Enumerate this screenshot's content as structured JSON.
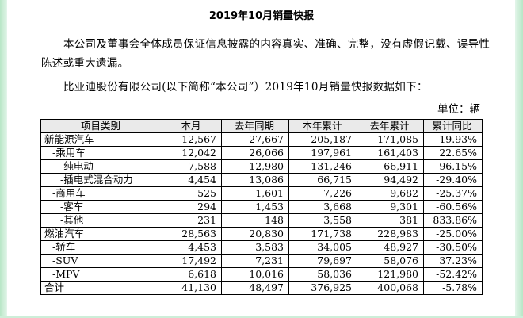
{
  "title": "2019年10月销量快报",
  "paragraph1": "本公司及董事会全体成员保证信息披露的内容真实、准确、完整，没有虚假记载、误导性陈述或重大遗漏。",
  "paragraph2": "比亚迪股份有限公司(以下简称“本公司”）2019年10月销量快报数据如下：",
  "unit": "单位：辆",
  "table": {
    "headers": [
      "项目类别",
      "本月",
      "去年同期",
      "本年累计",
      "去年累计",
      "累计同比"
    ],
    "rows": [
      {
        "label": "新能源汽车",
        "values": [
          "12,567",
          "27,667",
          "205,187",
          "171,085",
          "19.93%"
        ]
      },
      {
        "label": "-乘用车",
        "values": [
          "12,042",
          "26,066",
          "197,961",
          "161,403",
          "22.65%"
        ]
      },
      {
        "label": "-纯电动",
        "values": [
          "7,588",
          "12,980",
          "131,246",
          "66,911",
          "96.15%"
        ]
      },
      {
        "label": "-插电式混合动力",
        "values": [
          "4,454",
          "13,086",
          "66,715",
          "94,492",
          "-29.40%"
        ]
      },
      {
        "label": "-商用车",
        "values": [
          "525",
          "1,601",
          "7,226",
          "9,682",
          "-25.37%"
        ]
      },
      {
        "label": "-客车",
        "values": [
          "294",
          "1,453",
          "3,668",
          "9,301",
          "-60.56%"
        ]
      },
      {
        "label": "-其他",
        "values": [
          "231",
          "148",
          "3,558",
          "381",
          "833.86%"
        ]
      },
      {
        "label": "燃油汽车",
        "values": [
          "28,563",
          "20,830",
          "171,738",
          "228,983",
          "-25.00%"
        ]
      },
      {
        "label": "-轿车",
        "values": [
          "4,453",
          "3,583",
          "34,005",
          "48,927",
          "-30.50%"
        ]
      },
      {
        "label": "-SUV",
        "values": [
          "17,492",
          "7,231",
          "79,697",
          "58,076",
          "37.23%"
        ]
      },
      {
        "label": "-MPV",
        "values": [
          "6,618",
          "10,016",
          "58,036",
          "121,980",
          "-52.42%"
        ]
      },
      {
        "label": "合计",
        "values": [
          "41,130",
          "48,497",
          "376,925",
          "400,068",
          "-5.78%"
        ]
      }
    ]
  }
}
